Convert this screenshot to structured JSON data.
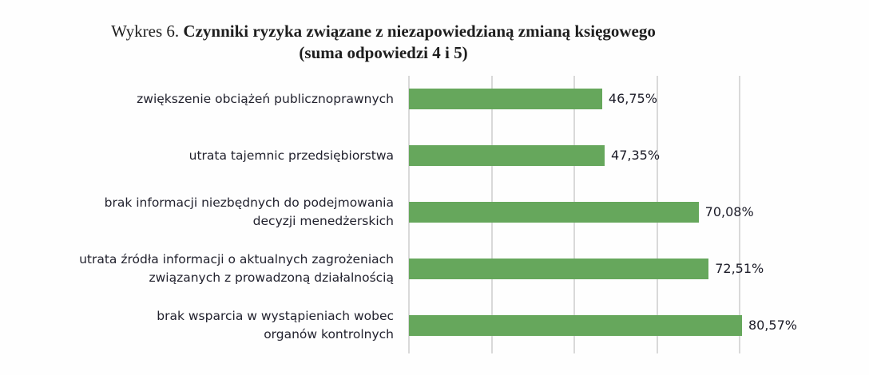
{
  "title": {
    "prefix": "Wykres 6.",
    "main": "Czynniki ryzyka związane z niezapowiedzianą zmianą księgowego",
    "subtitle": "(suma odpowiedzi 4 i 5)"
  },
  "colors": {
    "bar": "#66a75c",
    "grid": "#d9d9d9"
  },
  "chart_data": {
    "type": "bar",
    "orientation": "horizontal",
    "title": "Wykres 6. Czynniki ryzyka związane z niezapowiedzianą zmianą księgowego (suma odpowiedzi 4 i 5)",
    "categories": [
      "zwiększenie obciążeń publicznoprawnych",
      "utrata tajemnic przedsiębiorstwa",
      "brak informacji niezbędnych do podejmowania decyzji menedżerskich",
      "utrata źródła informacji o aktualnych zagrożeniach związanych z prowadzoną działalnością",
      "brak wsparcia w wystąpieniach wobec organów kontrolnych"
    ],
    "values": [
      46.75,
      47.35,
      70.08,
      72.51,
      80.57
    ],
    "value_labels": [
      "46,75%",
      "47,35%",
      "70,08%",
      "72,51%",
      "80,57%"
    ],
    "xlabel": "",
    "ylabel": "",
    "xlim": [
      0,
      80
    ],
    "gridlines": [
      0,
      20,
      40,
      60,
      80
    ],
    "grid": true,
    "tick_labels_visible": false,
    "legend": null
  },
  "rows": [
    {
      "lines": [
        "zwiększenie obciążeń publicznoprawnych"
      ],
      "label": "46,75%"
    },
    {
      "lines": [
        "utrata tajemnic przedsiębiorstwa"
      ],
      "label": "47,35%"
    },
    {
      "lines": [
        "brak informacji niezbędnych do podejmowania",
        "decyzji menedżerskich"
      ],
      "label": "70,08%"
    },
    {
      "lines": [
        "utrata źródła informacji o aktualnych zagrożeniach",
        "związanych z prowadzoną działalnością"
      ],
      "label": "72,51%"
    },
    {
      "lines": [
        "brak wsparcia w wystąpieniach wobec",
        "organów kontrolnych"
      ],
      "label": "80,57%"
    }
  ]
}
